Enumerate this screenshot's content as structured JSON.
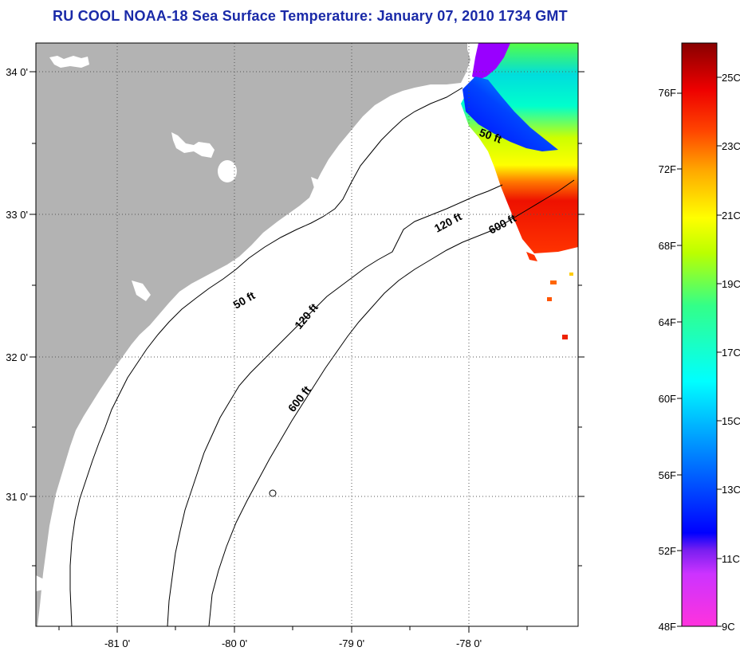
{
  "title": "RU COOL  NOAA-18  Sea Surface Temperature:  January 07, 2010 1734 GMT",
  "map": {
    "lat_labels": [
      "34 0'",
      "33 0'",
      "32 0'",
      "31 0'"
    ],
    "lon_labels": [
      "-81 0'",
      "-80 0'",
      "-79 0'",
      "-78 0'"
    ],
    "contour_labels": [
      "50 ft",
      "50 ft",
      "120 ft",
      "120 ft",
      "600 ft",
      "600 ft"
    ]
  },
  "colorbar": {
    "fahrenheit": [
      "76F",
      "72F",
      "68F",
      "64F",
      "60F",
      "56F",
      "52F",
      "48F"
    ],
    "celsius": [
      "25C",
      "23C",
      "21C",
      "19C",
      "17C",
      "15C",
      "13C",
      "11C",
      "9C"
    ]
  },
  "colors": {
    "land": "#b3b3b3",
    "title": "#1a2aa8"
  }
}
